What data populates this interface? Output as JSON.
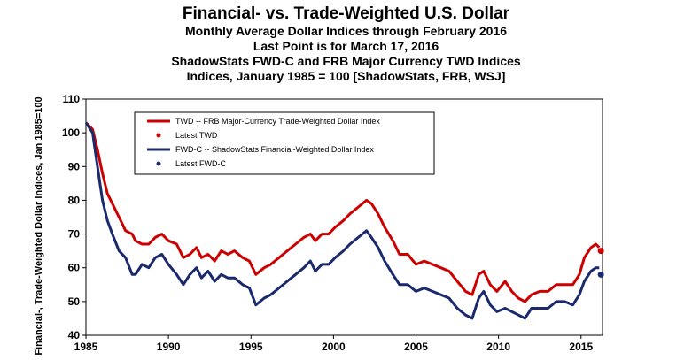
{
  "chart_data": {
    "type": "line",
    "title": "Financial- vs. Trade-Weighted U.S. Dollar",
    "subtitles": [
      "Monthly Average Dollar Indices through February 2016",
      "Last Point is for March 17, 2016",
      "ShadowStats FWD-C and FRB Major Currency TWD Indices",
      "Indices, January 1985 = 100 [ShadowStats, FRB, WSJ]"
    ],
    "ylabel": "Financial-, Trade-Weighted Dollar Indices, Jan 1985=100",
    "xlabel": "",
    "xlim": [
      1985,
      2016.3
    ],
    "ylim": [
      40,
      110
    ],
    "x_ticks": [
      1985,
      1990,
      1995,
      2000,
      2005,
      2010,
      2015
    ],
    "y_ticks": [
      40,
      50,
      60,
      70,
      80,
      90,
      100,
      110
    ],
    "grid": false,
    "legend_position": "top-left",
    "series": [
      {
        "name": "TWD -- FRB Major-Currency Trade-Weighted Dollar Index",
        "color": "#cc0000",
        "points": [
          [
            1985.0,
            103
          ],
          [
            1985.4,
            101
          ],
          [
            1985.7,
            95
          ],
          [
            1986.0,
            88
          ],
          [
            1986.3,
            82
          ],
          [
            1986.6,
            79
          ],
          [
            1987.0,
            75
          ],
          [
            1987.4,
            71
          ],
          [
            1987.8,
            70
          ],
          [
            1988.0,
            68
          ],
          [
            1988.4,
            67
          ],
          [
            1988.8,
            67
          ],
          [
            1989.2,
            69
          ],
          [
            1989.6,
            70
          ],
          [
            1990.0,
            68
          ],
          [
            1990.5,
            67
          ],
          [
            1990.9,
            63
          ],
          [
            1991.3,
            64
          ],
          [
            1991.7,
            66
          ],
          [
            1992.0,
            63
          ],
          [
            1992.4,
            64
          ],
          [
            1992.8,
            62
          ],
          [
            1993.2,
            65
          ],
          [
            1993.6,
            64
          ],
          [
            1994.0,
            65
          ],
          [
            1994.5,
            63
          ],
          [
            1994.9,
            62
          ],
          [
            1995.3,
            58
          ],
          [
            1995.8,
            60
          ],
          [
            1996.2,
            61
          ],
          [
            1996.7,
            63
          ],
          [
            1997.2,
            65
          ],
          [
            1997.7,
            67
          ],
          [
            1998.2,
            69
          ],
          [
            1998.6,
            70
          ],
          [
            1998.9,
            68
          ],
          [
            1999.3,
            70
          ],
          [
            1999.7,
            70
          ],
          [
            2000.1,
            72
          ],
          [
            2000.6,
            74
          ],
          [
            2001.0,
            76
          ],
          [
            2001.5,
            78
          ],
          [
            2002.0,
            80
          ],
          [
            2002.3,
            79
          ],
          [
            2002.7,
            76
          ],
          [
            2003.1,
            72
          ],
          [
            2003.6,
            68
          ],
          [
            2004.0,
            64
          ],
          [
            2004.5,
            64
          ],
          [
            2005.0,
            61
          ],
          [
            2005.5,
            62
          ],
          [
            2006.0,
            61
          ],
          [
            2006.5,
            60
          ],
          [
            2007.0,
            59
          ],
          [
            2007.5,
            56
          ],
          [
            2008.0,
            53
          ],
          [
            2008.4,
            52
          ],
          [
            2008.8,
            58
          ],
          [
            2009.1,
            59
          ],
          [
            2009.5,
            55
          ],
          [
            2009.9,
            53
          ],
          [
            2010.4,
            56
          ],
          [
            2010.8,
            53
          ],
          [
            2011.2,
            51
          ],
          [
            2011.6,
            50
          ],
          [
            2012.0,
            52
          ],
          [
            2012.5,
            53
          ],
          [
            2013.0,
            53
          ],
          [
            2013.5,
            55
          ],
          [
            2014.0,
            55
          ],
          [
            2014.5,
            55
          ],
          [
            2014.9,
            58
          ],
          [
            2015.2,
            63
          ],
          [
            2015.6,
            66
          ],
          [
            2015.9,
            67
          ],
          [
            2016.1,
            66
          ]
        ],
        "latest_label": "Latest TWD",
        "latest": [
          2016.2,
          65
        ]
      },
      {
        "name": "FWD-C -- ShadowStats Financial-Weighted Dollar Index",
        "color": "#1a2a6c",
        "points": [
          [
            1985.0,
            103
          ],
          [
            1985.4,
            100
          ],
          [
            1985.7,
            90
          ],
          [
            1986.0,
            80
          ],
          [
            1986.3,
            74
          ],
          [
            1986.6,
            70
          ],
          [
            1987.0,
            65
          ],
          [
            1987.4,
            63
          ],
          [
            1987.8,
            58
          ],
          [
            1988.0,
            58
          ],
          [
            1988.4,
            61
          ],
          [
            1988.8,
            60
          ],
          [
            1989.2,
            63
          ],
          [
            1989.6,
            64
          ],
          [
            1990.0,
            61
          ],
          [
            1990.5,
            58
          ],
          [
            1990.9,
            55
          ],
          [
            1991.3,
            58
          ],
          [
            1991.7,
            60
          ],
          [
            1992.0,
            57
          ],
          [
            1992.4,
            59
          ],
          [
            1992.8,
            56
          ],
          [
            1993.2,
            58
          ],
          [
            1993.6,
            57
          ],
          [
            1994.0,
            57
          ],
          [
            1994.5,
            55
          ],
          [
            1994.9,
            54
          ],
          [
            1995.3,
            49
          ],
          [
            1995.8,
            51
          ],
          [
            1996.2,
            52
          ],
          [
            1996.7,
            54
          ],
          [
            1997.2,
            56
          ],
          [
            1997.7,
            58
          ],
          [
            1998.2,
            60
          ],
          [
            1998.6,
            62
          ],
          [
            1998.9,
            59
          ],
          [
            1999.3,
            61
          ],
          [
            1999.7,
            61
          ],
          [
            2000.1,
            63
          ],
          [
            2000.6,
            65
          ],
          [
            2001.0,
            67
          ],
          [
            2001.5,
            69
          ],
          [
            2002.0,
            71
          ],
          [
            2002.3,
            69
          ],
          [
            2002.7,
            66
          ],
          [
            2003.1,
            62
          ],
          [
            2003.6,
            58
          ],
          [
            2004.0,
            55
          ],
          [
            2004.5,
            55
          ],
          [
            2005.0,
            53
          ],
          [
            2005.5,
            54
          ],
          [
            2006.0,
            53
          ],
          [
            2006.5,
            52
          ],
          [
            2007.0,
            51
          ],
          [
            2007.5,
            48
          ],
          [
            2008.0,
            46
          ],
          [
            2008.4,
            45
          ],
          [
            2008.8,
            51
          ],
          [
            2009.1,
            53
          ],
          [
            2009.5,
            49
          ],
          [
            2009.9,
            47
          ],
          [
            2010.4,
            48
          ],
          [
            2010.8,
            47
          ],
          [
            2011.2,
            46
          ],
          [
            2011.6,
            45
          ],
          [
            2012.0,
            48
          ],
          [
            2012.5,
            48
          ],
          [
            2013.0,
            48
          ],
          [
            2013.5,
            50
          ],
          [
            2014.0,
            50
          ],
          [
            2014.5,
            49
          ],
          [
            2014.9,
            52
          ],
          [
            2015.2,
            56
          ],
          [
            2015.6,
            59
          ],
          [
            2015.9,
            60
          ],
          [
            2016.1,
            60
          ]
        ],
        "latest_label": "Latest FWD-C",
        "latest": [
          2016.2,
          58
        ]
      }
    ]
  }
}
